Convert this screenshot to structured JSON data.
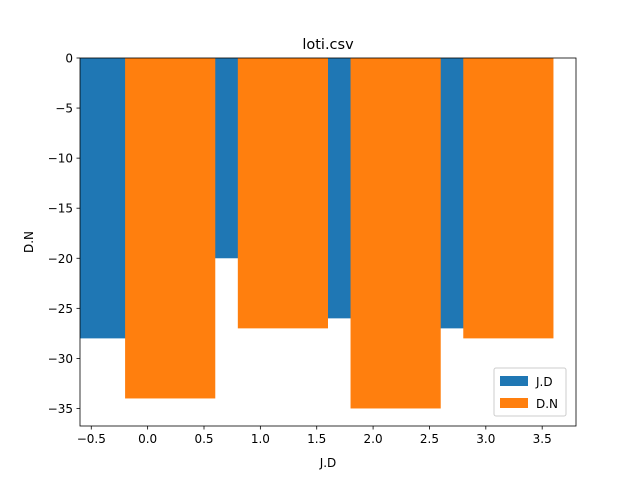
{
  "chart_data": {
    "type": "bar",
    "title": "loti.csv",
    "xlabel": "J.D",
    "ylabel": "D.N",
    "xlim": [
      -0.6,
      3.8
    ],
    "ylim": [
      -36.75,
      0
    ],
    "xticks": [
      -0.5,
      0.0,
      0.5,
      1.0,
      1.5,
      2.0,
      2.5,
      3.0,
      3.5
    ],
    "xtick_labels": [
      "−0.5",
      "0.0",
      "0.5",
      "1.0",
      "1.5",
      "2.0",
      "2.5",
      "3.0",
      "3.5"
    ],
    "yticks": [
      0,
      -5,
      -10,
      -15,
      -20,
      -25,
      -30,
      -35
    ],
    "ytick_labels": [
      "0",
      "−5",
      "−10",
      "−15",
      "−20",
      "−25",
      "−30",
      "−35"
    ],
    "bar_width": 0.8,
    "grid": false,
    "legend_position": "lower-right",
    "series": [
      {
        "name": "J.D",
        "color": "#1f77b4",
        "offset": -0.2,
        "x": [
          0,
          1,
          2,
          3
        ],
        "values": [
          -28,
          -20,
          -26,
          -27
        ]
      },
      {
        "name": "D.N",
        "color": "#ff7f0e",
        "offset": 0.2,
        "x": [
          0,
          1,
          2,
          3
        ],
        "values": [
          -34,
          -27,
          -35,
          -28
        ]
      }
    ]
  }
}
